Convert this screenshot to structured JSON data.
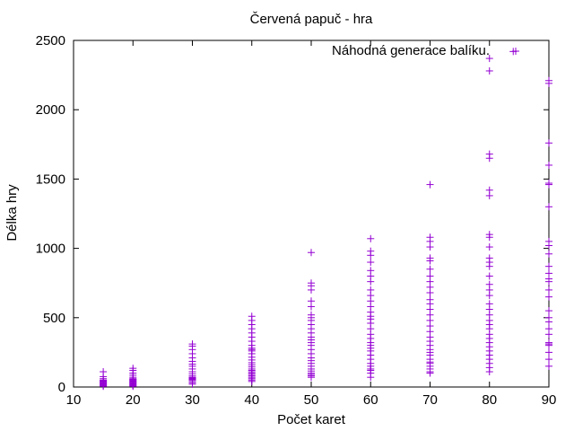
{
  "chart_data": {
    "type": "scatter",
    "title": "Červená papuč - hra",
    "xlabel": "Počet karet",
    "ylabel": "Délka hry",
    "xlim": [
      10,
      90
    ],
    "ylim": [
      0,
      2500
    ],
    "x_ticks": [
      10,
      20,
      30,
      40,
      50,
      60,
      70,
      80,
      90
    ],
    "y_ticks": [
      0,
      500,
      1000,
      1500,
      2000,
      2500
    ],
    "grid": false,
    "legend_position": "top-right",
    "series": [
      {
        "name": "Náhodná generace balíku.",
        "color": "#9400d3",
        "marker": "plus",
        "points": [
          [
            15,
            5
          ],
          [
            15,
            10
          ],
          [
            15,
            15
          ],
          [
            15,
            20
          ],
          [
            15,
            25
          ],
          [
            15,
            30
          ],
          [
            15,
            35
          ],
          [
            15,
            40
          ],
          [
            15,
            45
          ],
          [
            15,
            50
          ],
          [
            15,
            60
          ],
          [
            15,
            75
          ],
          [
            15,
            110
          ],
          [
            20,
            5
          ],
          [
            20,
            10
          ],
          [
            20,
            15
          ],
          [
            20,
            20
          ],
          [
            20,
            25
          ],
          [
            20,
            30
          ],
          [
            20,
            35
          ],
          [
            20,
            40
          ],
          [
            20,
            45
          ],
          [
            20,
            50
          ],
          [
            20,
            55
          ],
          [
            20,
            60
          ],
          [
            20,
            70
          ],
          [
            20,
            85
          ],
          [
            20,
            100
          ],
          [
            20,
            120
          ],
          [
            20,
            135
          ],
          [
            30,
            20
          ],
          [
            30,
            30
          ],
          [
            30,
            40
          ],
          [
            30,
            50
          ],
          [
            30,
            55
          ],
          [
            30,
            60
          ],
          [
            30,
            65
          ],
          [
            30,
            70
          ],
          [
            30,
            80
          ],
          [
            30,
            95
          ],
          [
            30,
            110
          ],
          [
            30,
            130
          ],
          [
            30,
            150
          ],
          [
            30,
            165
          ],
          [
            30,
            185
          ],
          [
            30,
            210
          ],
          [
            30,
            240
          ],
          [
            30,
            270
          ],
          [
            30,
            295
          ],
          [
            30,
            310
          ],
          [
            40,
            40
          ],
          [
            40,
            50
          ],
          [
            40,
            60
          ],
          [
            40,
            70
          ],
          [
            40,
            80
          ],
          [
            40,
            90
          ],
          [
            40,
            100
          ],
          [
            40,
            110
          ],
          [
            40,
            120
          ],
          [
            40,
            130
          ],
          [
            40,
            145
          ],
          [
            40,
            160
          ],
          [
            40,
            175
          ],
          [
            40,
            195
          ],
          [
            40,
            215
          ],
          [
            40,
            240
          ],
          [
            40,
            260
          ],
          [
            40,
            270
          ],
          [
            40,
            280
          ],
          [
            40,
            300
          ],
          [
            40,
            330
          ],
          [
            40,
            360
          ],
          [
            40,
            390
          ],
          [
            40,
            420
          ],
          [
            40,
            450
          ],
          [
            40,
            480
          ],
          [
            40,
            510
          ],
          [
            50,
            70
          ],
          [
            50,
            80
          ],
          [
            50,
            90
          ],
          [
            50,
            100
          ],
          [
            50,
            115
          ],
          [
            50,
            130
          ],
          [
            50,
            150
          ],
          [
            50,
            170
          ],
          [
            50,
            190
          ],
          [
            50,
            210
          ],
          [
            50,
            240
          ],
          [
            50,
            270
          ],
          [
            50,
            300
          ],
          [
            50,
            320
          ],
          [
            50,
            340
          ],
          [
            50,
            360
          ],
          [
            50,
            390
          ],
          [
            50,
            420
          ],
          [
            50,
            450
          ],
          [
            50,
            480
          ],
          [
            50,
            500
          ],
          [
            50,
            520
          ],
          [
            50,
            580
          ],
          [
            50,
            620
          ],
          [
            50,
            700
          ],
          [
            50,
            730
          ],
          [
            50,
            750
          ],
          [
            50,
            970
          ],
          [
            60,
            70
          ],
          [
            60,
            100
          ],
          [
            60,
            120
          ],
          [
            60,
            130
          ],
          [
            60,
            150
          ],
          [
            60,
            170
          ],
          [
            60,
            200
          ],
          [
            60,
            230
          ],
          [
            60,
            260
          ],
          [
            60,
            280
          ],
          [
            60,
            300
          ],
          [
            60,
            320
          ],
          [
            60,
            350
          ],
          [
            60,
            380
          ],
          [
            60,
            420
          ],
          [
            60,
            460
          ],
          [
            60,
            490
          ],
          [
            60,
            510
          ],
          [
            60,
            540
          ],
          [
            60,
            580
          ],
          [
            60,
            620
          ],
          [
            60,
            660
          ],
          [
            60,
            700
          ],
          [
            60,
            760
          ],
          [
            60,
            800
          ],
          [
            60,
            840
          ],
          [
            60,
            900
          ],
          [
            60,
            950
          ],
          [
            60,
            980
          ],
          [
            60,
            1070
          ],
          [
            70,
            100
          ],
          [
            70,
            110
          ],
          [
            70,
            130
          ],
          [
            70,
            150
          ],
          [
            70,
            170
          ],
          [
            70,
            180
          ],
          [
            70,
            200
          ],
          [
            70,
            230
          ],
          [
            70,
            250
          ],
          [
            70,
            270
          ],
          [
            70,
            300
          ],
          [
            70,
            330
          ],
          [
            70,
            360
          ],
          [
            70,
            400
          ],
          [
            70,
            440
          ],
          [
            70,
            480
          ],
          [
            70,
            520
          ],
          [
            70,
            560
          ],
          [
            70,
            600
          ],
          [
            70,
            630
          ],
          [
            70,
            680
          ],
          [
            70,
            720
          ],
          [
            70,
            760
          ],
          [
            70,
            800
          ],
          [
            70,
            850
          ],
          [
            70,
            910
          ],
          [
            70,
            930
          ],
          [
            70,
            1010
          ],
          [
            70,
            1050
          ],
          [
            70,
            1080
          ],
          [
            70,
            1460
          ],
          [
            80,
            110
          ],
          [
            80,
            140
          ],
          [
            80,
            170
          ],
          [
            80,
            200
          ],
          [
            80,
            230
          ],
          [
            80,
            260
          ],
          [
            80,
            290
          ],
          [
            80,
            320
          ],
          [
            80,
            350
          ],
          [
            80,
            380
          ],
          [
            80,
            420
          ],
          [
            80,
            450
          ],
          [
            80,
            480
          ],
          [
            80,
            520
          ],
          [
            80,
            560
          ],
          [
            80,
            600
          ],
          [
            80,
            660
          ],
          [
            80,
            700
          ],
          [
            80,
            740
          ],
          [
            80,
            800
          ],
          [
            80,
            870
          ],
          [
            80,
            900
          ],
          [
            80,
            930
          ],
          [
            80,
            1010
          ],
          [
            80,
            1080
          ],
          [
            80,
            1100
          ],
          [
            80,
            1380
          ],
          [
            80,
            1420
          ],
          [
            80,
            1650
          ],
          [
            80,
            1680
          ],
          [
            80,
            2280
          ],
          [
            80,
            2370
          ],
          [
            84,
            2420
          ],
          [
            90,
            150
          ],
          [
            90,
            200
          ],
          [
            90,
            250
          ],
          [
            90,
            300
          ],
          [
            90,
            310
          ],
          [
            90,
            320
          ],
          [
            90,
            380
          ],
          [
            90,
            420
          ],
          [
            90,
            470
          ],
          [
            90,
            500
          ],
          [
            90,
            550
          ],
          [
            90,
            650
          ],
          [
            90,
            700
          ],
          [
            90,
            760
          ],
          [
            90,
            780
          ],
          [
            90,
            820
          ],
          [
            90,
            870
          ],
          [
            90,
            960
          ],
          [
            90,
            1020
          ],
          [
            90,
            1050
          ],
          [
            90,
            1300
          ],
          [
            90,
            1460
          ],
          [
            90,
            1470
          ],
          [
            90,
            1600
          ],
          [
            90,
            1760
          ],
          [
            90,
            2190
          ],
          [
            90,
            2210
          ]
        ]
      }
    ]
  }
}
